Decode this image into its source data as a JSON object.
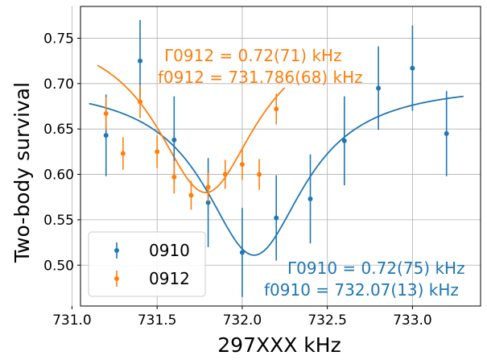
{
  "chart_data": {
    "type": "scatter",
    "xlabel": "297XXX kHz",
    "ylabel": "Two-body survival",
    "xlim": [
      731.05,
      733.4
    ],
    "ylim": [
      0.455,
      0.785
    ],
    "xticks": [
      731.0,
      731.5,
      732.0,
      732.5,
      733.0
    ],
    "xtick_labels": [
      "731.0",
      "731.5",
      "732.0",
      "732.5",
      "733.0"
    ],
    "yticks": [
      0.5,
      0.55,
      0.6,
      0.65,
      0.7,
      0.75
    ],
    "ytick_labels": [
      "0.50",
      "0.55",
      "0.60",
      "0.65",
      "0.70",
      "0.75"
    ],
    "grid": true,
    "legend_position": "lower-left",
    "series": [
      {
        "name": "0910",
        "color": "#1f77b4",
        "points": [
          {
            "x": 731.2,
            "y": 0.643,
            "err": 0.045
          },
          {
            "x": 731.4,
            "y": 0.725,
            "err": 0.045
          },
          {
            "x": 731.6,
            "y": 0.638,
            "err": 0.048
          },
          {
            "x": 731.8,
            "y": 0.569,
            "err": 0.049
          },
          {
            "x": 732.0,
            "y": 0.514,
            "err": 0.049
          },
          {
            "x": 732.2,
            "y": 0.552,
            "err": 0.047
          },
          {
            "x": 732.4,
            "y": 0.573,
            "err": 0.049
          },
          {
            "x": 732.6,
            "y": 0.637,
            "err": 0.049
          },
          {
            "x": 732.8,
            "y": 0.695,
            "err": 0.046
          },
          {
            "x": 733.0,
            "y": 0.717,
            "err": 0.047
          },
          {
            "x": 733.2,
            "y": 0.645,
            "err": 0.047
          }
        ],
        "fit": {
          "x_start": 731.1,
          "x_end": 733.3,
          "center": 732.07,
          "width": 0.72,
          "baseline": 0.701,
          "depth": 0.19
        },
        "annotation": {
          "line1": "Γ0910 = 0.72(75) kHz",
          "line2": "f0910 = 732.07(13) kHz"
        }
      },
      {
        "name": "0912",
        "color": "#ff7f0e",
        "points": [
          {
            "x": 731.2,
            "y": 0.667,
            "err": 0.018
          },
          {
            "x": 731.3,
            "y": 0.623,
            "err": 0.018
          },
          {
            "x": 731.4,
            "y": 0.68,
            "err": 0.018
          },
          {
            "x": 731.5,
            "y": 0.625,
            "err": 0.018
          },
          {
            "x": 731.6,
            "y": 0.597,
            "err": 0.018
          },
          {
            "x": 731.7,
            "y": 0.577,
            "err": 0.016
          },
          {
            "x": 731.8,
            "y": 0.586,
            "err": 0.016
          },
          {
            "x": 731.9,
            "y": 0.6,
            "err": 0.016
          },
          {
            "x": 732.0,
            "y": 0.611,
            "err": 0.017
          },
          {
            "x": 732.1,
            "y": 0.6,
            "err": 0.017
          },
          {
            "x": 732.2,
            "y": 0.672,
            "err": 0.017
          }
        ],
        "fit": {
          "x_start": 731.15,
          "x_end": 732.25,
          "center": 731.786,
          "width": 0.72,
          "baseline": 0.765,
          "depth": 0.185
        },
        "annotation": {
          "line1": "Γ0912 = 0.72(71) kHz",
          "line2": "f0912 = 731.786(68) kHz"
        }
      }
    ]
  }
}
